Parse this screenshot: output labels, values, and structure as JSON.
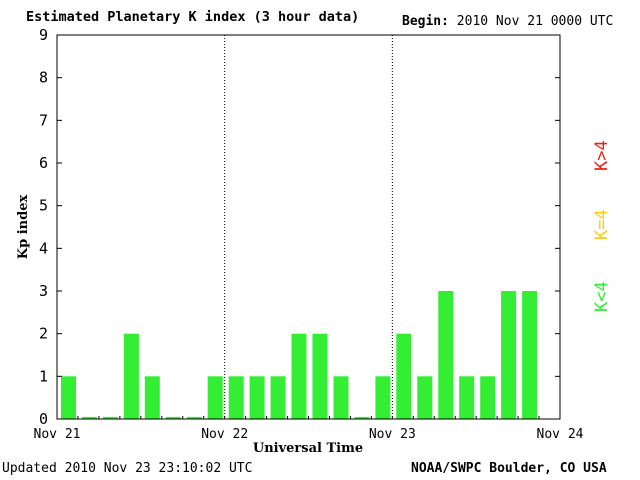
{
  "header": {
    "title": "Estimated Planetary K index (3 hour data)",
    "begin_label": "Begin:",
    "begin_value": "2010 Nov 21 0000 UTC"
  },
  "footer": {
    "updated_label": "Updated",
    "updated_value": "2010 Nov 23 23:10:02 UTC",
    "credit": "NOAA/SWPC Boulder, CO USA"
  },
  "legend": {
    "items": [
      {
        "label": "K<4",
        "color": "#33ee33"
      },
      {
        "label": "K=4",
        "color": "#ffcc11"
      },
      {
        "label": "K>4",
        "color": "#ee2211"
      }
    ]
  },
  "colors": {
    "low": "#33ee33",
    "axis": "#000000"
  },
  "chart_data": {
    "type": "bar",
    "xlabel": "Universal Time",
    "ylabel": "Kp index",
    "ylim": [
      0,
      9
    ],
    "y_ticks": [
      "0",
      "1",
      "2",
      "3",
      "4",
      "5",
      "6",
      "7",
      "8",
      "9"
    ],
    "x_ticks": [
      "Nov 21",
      "Nov 22",
      "Nov 23",
      "Nov 24"
    ],
    "day_separators": [
      "Nov 22",
      "Nov 23"
    ],
    "grid": false,
    "bar_interval_hours": 3,
    "series": [
      {
        "values": [
          1,
          0.05,
          0.05,
          2,
          1,
          0.05,
          0.05,
          1,
          1,
          1,
          1,
          2,
          2,
          1,
          0.05,
          1,
          2,
          1,
          3,
          1,
          1,
          3,
          3
        ]
      }
    ]
  }
}
